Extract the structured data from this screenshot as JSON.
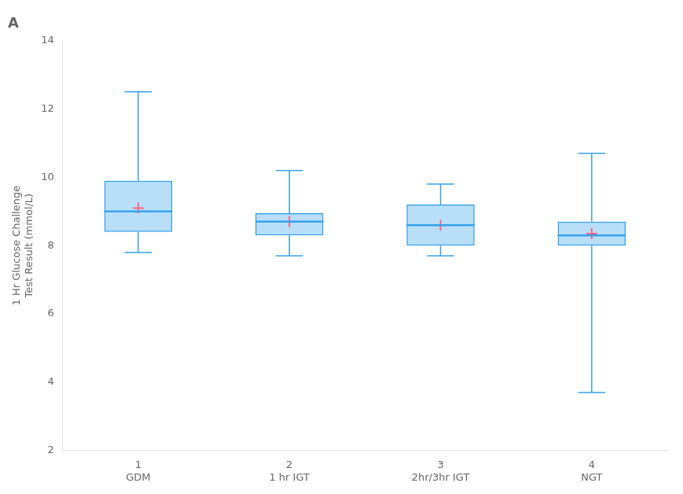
{
  "chart_data": {
    "type": "box",
    "title": "A",
    "ylabel": "1 Hr Glucose Challenge\nTest Result (mmol/L)",
    "categories": [
      "1\nGDM",
      "2\n1 hr IGT",
      "3\n2hr/3hr IGT",
      "4\nNGT"
    ],
    "values": [
      {
        "whisker_low": 7.8,
        "q1": 8.4,
        "median": 9.0,
        "q3": 9.9,
        "whisker_high": 12.5,
        "mean": 9.1
      },
      {
        "whisker_low": 7.7,
        "q1": 8.3,
        "median": 8.7,
        "q3": 8.95,
        "whisker_high": 10.2,
        "mean": 8.7
      },
      {
        "whisker_low": 7.7,
        "q1": 8.0,
        "median": 8.6,
        "q3": 9.2,
        "whisker_high": 9.8,
        "mean": 8.6
      },
      {
        "whisker_low": 3.7,
        "q1": 8.0,
        "median": 8.3,
        "q3": 8.7,
        "whisker_high": 10.7,
        "mean": 8.35
      }
    ],
    "ylim": [
      2,
      14
    ],
    "yticks": [
      2,
      4,
      6,
      8,
      10,
      12,
      14
    ],
    "grid": false
  }
}
